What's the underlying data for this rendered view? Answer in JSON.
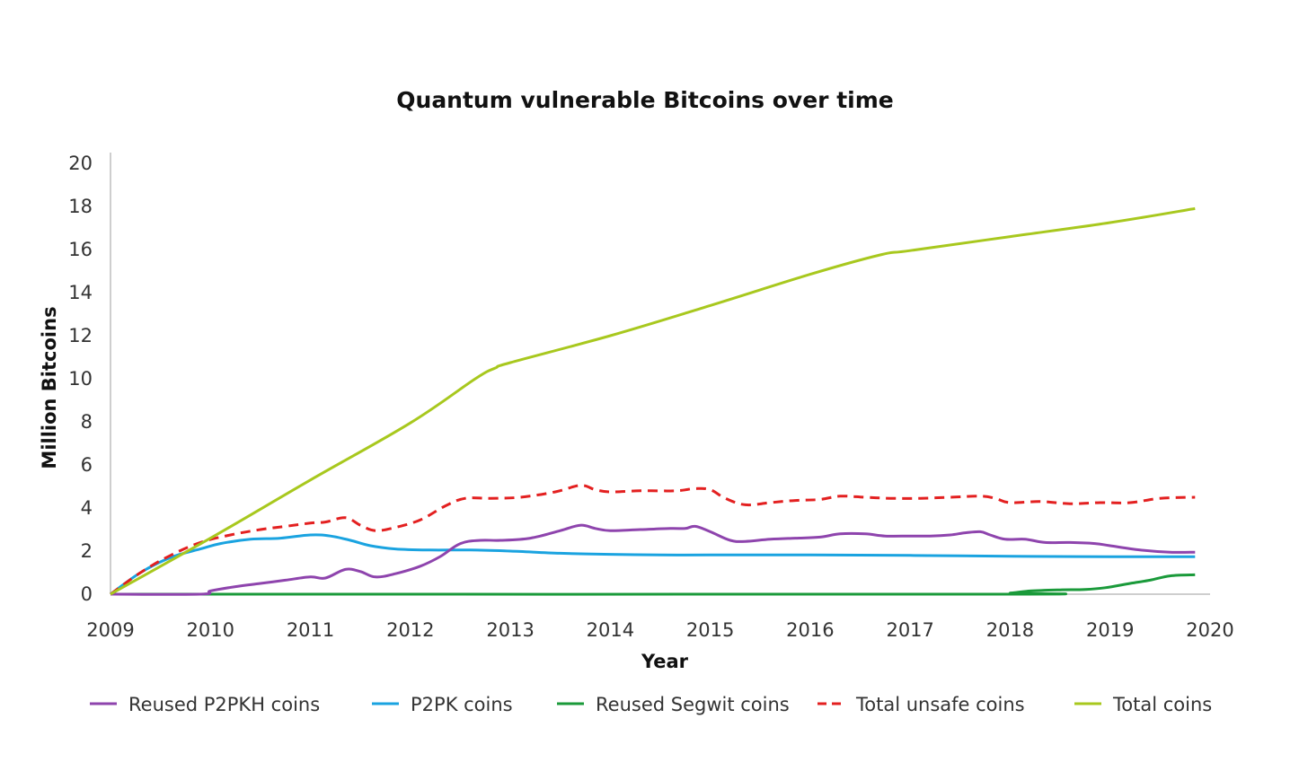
{
  "chart_data": {
    "type": "line",
    "title": "Quantum vulnerable Bitcoins over time",
    "xlabel": "Year",
    "ylabel": "Million Bitcoins",
    "xlim": [
      2009,
      2020
    ],
    "ylim": [
      0,
      20
    ],
    "xticks": [
      "2009",
      "2010",
      "2011",
      "2012",
      "2013",
      "2014",
      "2015",
      "2016",
      "2017",
      "2018",
      "2019",
      "2020"
    ],
    "yticks": [
      "0",
      "2",
      "4",
      "6",
      "8",
      "10",
      "12",
      "14",
      "16",
      "18",
      "20"
    ],
    "grid": false,
    "legend_position": "bottom",
    "series": [
      {
        "name": "Reused P2PKH coins",
        "color": "#8e44ad",
        "dash": false,
        "points": [
          [
            2009,
            0
          ],
          [
            2009.9,
            0
          ],
          [
            2010.0,
            0.15
          ],
          [
            2010.25,
            0.35
          ],
          [
            2010.5,
            0.5
          ],
          [
            2010.75,
            0.65
          ],
          [
            2011.0,
            0.8
          ],
          [
            2011.15,
            0.75
          ],
          [
            2011.35,
            1.15
          ],
          [
            2011.5,
            1.05
          ],
          [
            2011.65,
            0.8
          ],
          [
            2011.85,
            0.95
          ],
          [
            2012.1,
            1.3
          ],
          [
            2012.3,
            1.75
          ],
          [
            2012.5,
            2.35
          ],
          [
            2012.7,
            2.5
          ],
          [
            2012.9,
            2.5
          ],
          [
            2013.2,
            2.6
          ],
          [
            2013.5,
            2.95
          ],
          [
            2013.7,
            3.2
          ],
          [
            2013.85,
            3.05
          ],
          [
            2014.0,
            2.95
          ],
          [
            2014.3,
            3.0
          ],
          [
            2014.6,
            3.05
          ],
          [
            2014.75,
            3.05
          ],
          [
            2014.85,
            3.15
          ],
          [
            2015.0,
            2.9
          ],
          [
            2015.2,
            2.5
          ],
          [
            2015.35,
            2.45
          ],
          [
            2015.6,
            2.55
          ],
          [
            2015.85,
            2.6
          ],
          [
            2016.1,
            2.65
          ],
          [
            2016.3,
            2.8
          ],
          [
            2016.55,
            2.8
          ],
          [
            2016.75,
            2.7
          ],
          [
            2017.0,
            2.7
          ],
          [
            2017.2,
            2.7
          ],
          [
            2017.4,
            2.75
          ],
          [
            2017.55,
            2.85
          ],
          [
            2017.7,
            2.9
          ],
          [
            2017.8,
            2.75
          ],
          [
            2017.95,
            2.55
          ],
          [
            2018.15,
            2.55
          ],
          [
            2018.35,
            2.4
          ],
          [
            2018.6,
            2.4
          ],
          [
            2018.85,
            2.35
          ],
          [
            2019.0,
            2.25
          ],
          [
            2019.3,
            2.05
          ],
          [
            2019.6,
            1.95
          ],
          [
            2019.85,
            1.95
          ]
        ]
      },
      {
        "name": "P2PK coins",
        "color": "#1aa3e0",
        "dash": false,
        "points": [
          [
            2009,
            0
          ],
          [
            2009.3,
            1.0
          ],
          [
            2009.6,
            1.7
          ],
          [
            2009.9,
            2.1
          ],
          [
            2010.1,
            2.35
          ],
          [
            2010.4,
            2.55
          ],
          [
            2010.7,
            2.6
          ],
          [
            2011.0,
            2.75
          ],
          [
            2011.2,
            2.7
          ],
          [
            2011.4,
            2.5
          ],
          [
            2011.6,
            2.25
          ],
          [
            2011.85,
            2.1
          ],
          [
            2012.2,
            2.05
          ],
          [
            2012.6,
            2.05
          ],
          [
            2013.0,
            2.0
          ],
          [
            2013.5,
            1.9
          ],
          [
            2014.0,
            1.85
          ],
          [
            2014.5,
            1.82
          ],
          [
            2015.0,
            1.82
          ],
          [
            2016.0,
            1.82
          ],
          [
            2017.0,
            1.8
          ],
          [
            2018.0,
            1.76
          ],
          [
            2019.0,
            1.74
          ],
          [
            2019.85,
            1.74
          ]
        ]
      },
      {
        "name": "Reused Segwit coins",
        "color": "#1a9a3a",
        "dash": false,
        "points": [
          [
            2009,
            0
          ],
          [
            2017.8,
            0
          ],
          [
            2018.0,
            0.05
          ],
          [
            2018.2,
            0.15
          ],
          [
            2018.5,
            0.2
          ],
          [
            2018.75,
            0.22
          ],
          [
            2018.95,
            0.3
          ],
          [
            2019.2,
            0.5
          ],
          [
            2019.4,
            0.65
          ],
          [
            2019.6,
            0.85
          ],
          [
            2019.85,
            0.9
          ]
        ]
      },
      {
        "name": "Total unsafe coins",
        "color": "#e32020",
        "dash": true,
        "points": [
          [
            2009,
            0
          ],
          [
            2009.3,
            1.0
          ],
          [
            2009.6,
            1.8
          ],
          [
            2009.9,
            2.4
          ],
          [
            2010.2,
            2.75
          ],
          [
            2010.5,
            3.0
          ],
          [
            2010.75,
            3.15
          ],
          [
            2011.0,
            3.3
          ],
          [
            2011.15,
            3.35
          ],
          [
            2011.35,
            3.55
          ],
          [
            2011.5,
            3.2
          ],
          [
            2011.65,
            2.95
          ],
          [
            2011.85,
            3.1
          ],
          [
            2012.1,
            3.45
          ],
          [
            2012.35,
            4.1
          ],
          [
            2012.55,
            4.45
          ],
          [
            2012.8,
            4.45
          ],
          [
            2013.1,
            4.5
          ],
          [
            2013.45,
            4.75
          ],
          [
            2013.7,
            5.05
          ],
          [
            2013.85,
            4.85
          ],
          [
            2014.0,
            4.75
          ],
          [
            2014.3,
            4.8
          ],
          [
            2014.65,
            4.8
          ],
          [
            2014.85,
            4.9
          ],
          [
            2015.0,
            4.85
          ],
          [
            2015.15,
            4.45
          ],
          [
            2015.35,
            4.15
          ],
          [
            2015.6,
            4.25
          ],
          [
            2015.85,
            4.35
          ],
          [
            2016.1,
            4.4
          ],
          [
            2016.3,
            4.55
          ],
          [
            2016.55,
            4.5
          ],
          [
            2016.8,
            4.45
          ],
          [
            2017.1,
            4.45
          ],
          [
            2017.4,
            4.5
          ],
          [
            2017.7,
            4.55
          ],
          [
            2017.85,
            4.45
          ],
          [
            2018.0,
            4.25
          ],
          [
            2018.3,
            4.3
          ],
          [
            2018.6,
            4.2
          ],
          [
            2018.9,
            4.25
          ],
          [
            2019.2,
            4.25
          ],
          [
            2019.5,
            4.45
          ],
          [
            2019.85,
            4.5
          ]
        ]
      },
      {
        "name": "Total coins",
        "color": "#a8c81e",
        "dash": false,
        "points": [
          [
            2009,
            0
          ],
          [
            2010.0,
            2.6
          ],
          [
            2011.0,
            5.3
          ],
          [
            2012.0,
            7.95
          ],
          [
            2012.65,
            10.0
          ],
          [
            2012.85,
            10.5
          ],
          [
            2013.0,
            10.75
          ],
          [
            2014.0,
            12.0
          ],
          [
            2015.0,
            13.4
          ],
          [
            2016.0,
            14.85
          ],
          [
            2016.7,
            15.75
          ],
          [
            2017.0,
            15.95
          ],
          [
            2018.0,
            16.6
          ],
          [
            2019.0,
            17.25
          ],
          [
            2019.85,
            17.9
          ]
        ]
      }
    ]
  }
}
